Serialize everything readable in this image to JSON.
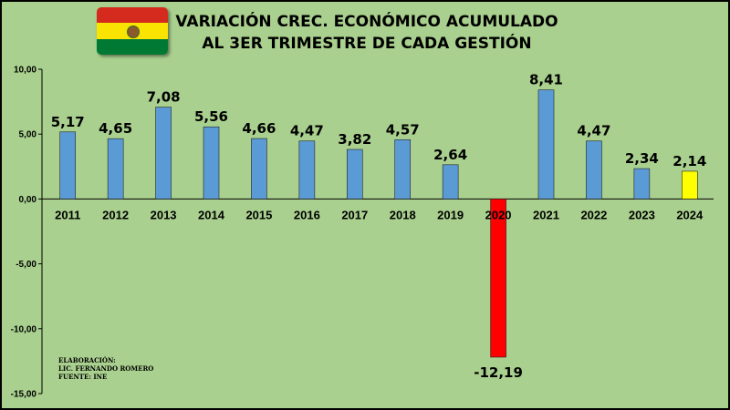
{
  "header": {
    "title_line1": "VARIACIÓN CREC. ECONÓMICO ACUMULADO",
    "title_line2": "AL 3ER TRIMESTRE DE CADA GESTIÓN",
    "flag_icon": "bolivia-flag-icon"
  },
  "credits": {
    "line1": "ELABORACIÓN:",
    "line2": "LIC. FERNANDO ROMERO",
    "line3": "FUENTE: INE"
  },
  "colors": {
    "background": "#a9d08e",
    "bar_default": "#5b9bd5",
    "bar_negative": "#ff0000",
    "bar_highlight": "#ffff00"
  },
  "chart_data": {
    "type": "bar",
    "title": "VARIACIÓN CREC. ECONÓMICO ACUMULADO AL 3ER TRIMESTRE DE CADA GESTIÓN",
    "categories": [
      "2011",
      "2012",
      "2013",
      "2014",
      "2015",
      "2016",
      "2017",
      "2018",
      "2019",
      "2020",
      "2021",
      "2022",
      "2023",
      "2024"
    ],
    "values": [
      5.17,
      4.65,
      7.08,
      5.56,
      4.66,
      4.47,
      3.82,
      4.57,
      2.64,
      -12.19,
      8.41,
      4.47,
      2.34,
      2.14
    ],
    "value_labels": [
      "5,17",
      "4,65",
      "7,08",
      "5,56",
      "4,66",
      "4,47",
      "3,82",
      "4,57",
      "2,64",
      "-12,19",
      "8,41",
      "4,47",
      "2,34",
      "2,14"
    ],
    "bar_colors": [
      "#5b9bd5",
      "#5b9bd5",
      "#5b9bd5",
      "#5b9bd5",
      "#5b9bd5",
      "#5b9bd5",
      "#5b9bd5",
      "#5b9bd5",
      "#5b9bd5",
      "#ff0000",
      "#5b9bd5",
      "#5b9bd5",
      "#5b9bd5",
      "#ffff00"
    ],
    "ylim": [
      -15,
      10
    ],
    "yticks": [
      10,
      5,
      0,
      -5,
      -10,
      -15
    ],
    "ytick_labels": [
      "10,00",
      "5,00",
      "0,00",
      "-5,00",
      "-10,00",
      "-15,00"
    ],
    "xlabel": "",
    "ylabel": "",
    "grid": false,
    "legend": "none"
  }
}
